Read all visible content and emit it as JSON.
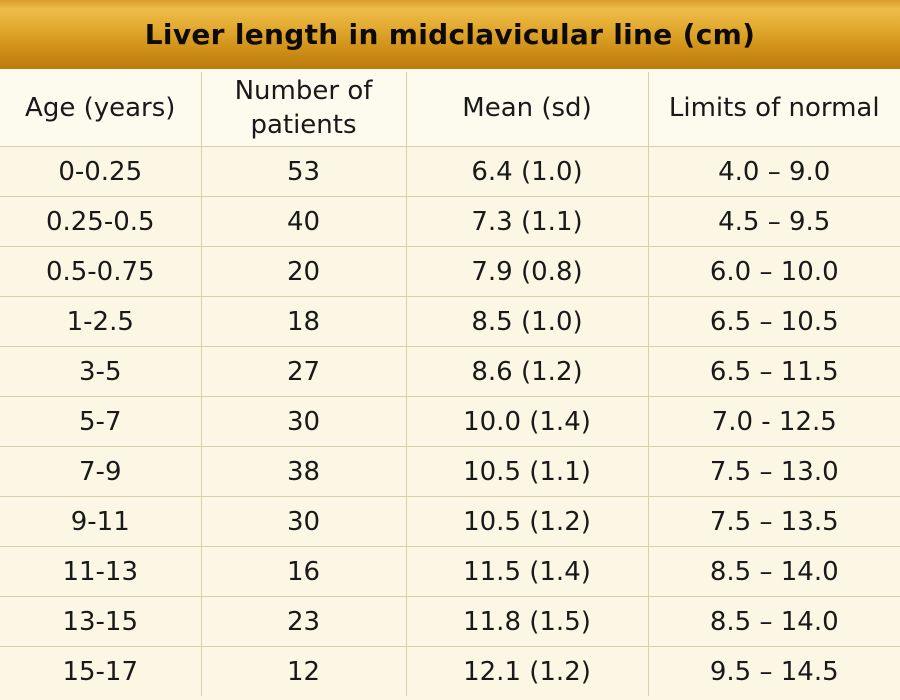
{
  "title": "Liver length in midclavicular line (cm)",
  "colors": {
    "title_bar_gradient_top": "#eebd4a",
    "title_bar_gradient_bottom": "#bc7d0c",
    "table_background": "#fbf7e4",
    "header_row_background": "#fdfbee",
    "grid_line": "#d9cfa9",
    "text": "#191919"
  },
  "chart_data": {
    "type": "table",
    "title": "Liver length in midclavicular line (cm)",
    "columns": [
      "Age (years)",
      "Number of patients",
      "Mean (sd)",
      "Limits of normal"
    ],
    "rows": [
      [
        "0-0.25",
        "53",
        "6.4 (1.0)",
        "4.0 – 9.0"
      ],
      [
        "0.25-0.5",
        "40",
        "7.3 (1.1)",
        "4.5 – 9.5"
      ],
      [
        "0.5-0.75",
        "20",
        "7.9 (0.8)",
        "6.0 – 10.0"
      ],
      [
        "1-2.5",
        "18",
        "8.5 (1.0)",
        "6.5 – 10.5"
      ],
      [
        "3-5",
        "27",
        "8.6 (1.2)",
        "6.5 – 11.5"
      ],
      [
        "5-7",
        "30",
        "10.0 (1.4)",
        "7.0 - 12.5"
      ],
      [
        "7-9",
        "38",
        "10.5 (1.1)",
        "7.5 – 13.0"
      ],
      [
        "9-11",
        "30",
        "10.5 (1.2)",
        "7.5 – 13.5"
      ],
      [
        "11-13",
        "16",
        "11.5 (1.4)",
        "8.5 – 14.0"
      ],
      [
        "13-15",
        "23",
        "11.8 (1.5)",
        "8.5 – 14.0"
      ],
      [
        "15-17",
        "12",
        "12.1 (1.2)",
        "9.5 – 14.5"
      ]
    ]
  }
}
